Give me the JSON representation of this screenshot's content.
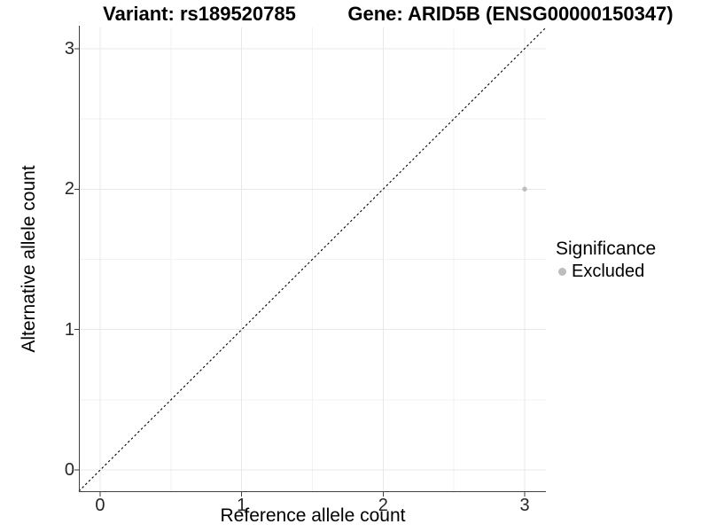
{
  "titles": {
    "variant": "Variant: rs189520785",
    "gene": "Gene: ARID5B (ENSG00000150347)"
  },
  "legend": {
    "title": "Significance",
    "items": [
      {
        "label": "Excluded",
        "color": "#bdbdbd"
      }
    ]
  },
  "chart_data": {
    "type": "scatter",
    "title_left": "Variant: rs189520785",
    "title_right": "Gene: ARID5B (ENSG00000150347)",
    "xlabel": "Reference allele count",
    "ylabel": "Alternative allele count",
    "xlim": [
      -0.15,
      3.15
    ],
    "ylim": [
      -0.15,
      3.15
    ],
    "xticks": [
      0,
      1,
      2,
      3
    ],
    "yticks": [
      0,
      1,
      2,
      3
    ],
    "xticks_minor": [
      0.5,
      1.5,
      2.5
    ],
    "yticks_minor": [
      0.5,
      1.5,
      2.5
    ],
    "grid": "major+minor",
    "legend_title": "Significance",
    "legend_position": "right",
    "series": [
      {
        "name": "Excluded",
        "color": "#bdbdbd",
        "points": [
          {
            "x": 3,
            "y": 2
          }
        ]
      }
    ],
    "reference_line": {
      "slope": 1,
      "intercept": 0,
      "style": "dashed",
      "color": "#000000"
    }
  },
  "colors": {
    "background": "#ffffff",
    "grid_major": "#e8e8e8",
    "grid_minor": "#f2f2f2",
    "axis_line": "#3f3f3f",
    "tick_text": "#262626",
    "title_text": "#000000",
    "point": "#bdbdbd",
    "reference_line": "#000000"
  }
}
